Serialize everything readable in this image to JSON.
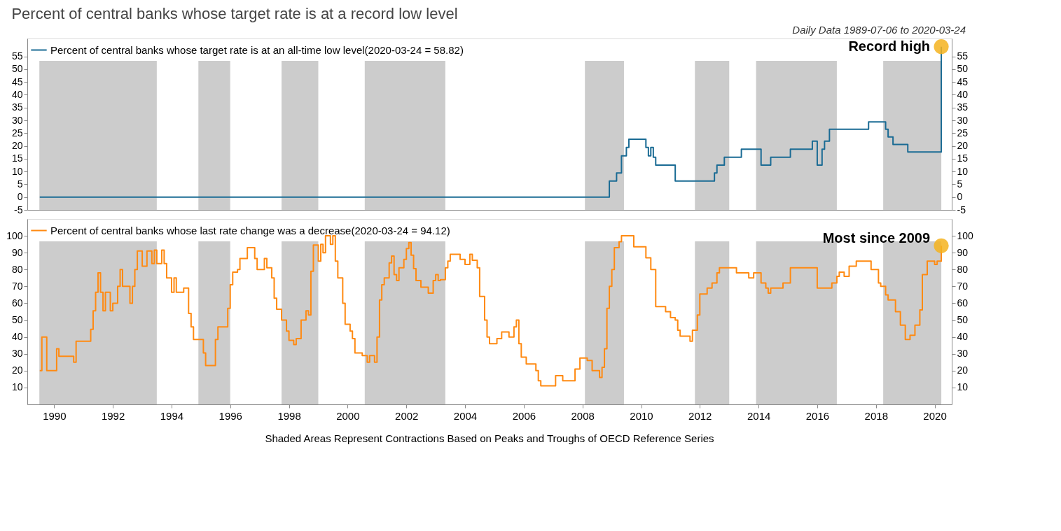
{
  "chart_data": [
    {
      "type": "step",
      "title": "Percent of central banks whose target rate is at a record low level",
      "subtitle": "Daily Data 1989-07-06 to 2020-03-24",
      "series": [
        {
          "name": "Percent of central banks whose target rate is at an all-time low level(2020-03-24 = 58.82)",
          "color": "#1a6b94",
          "x": [
            "1989-07-06",
            "2008-12",
            "2009-03",
            "2009-05",
            "2009-07",
            "2009-08",
            "2010-03",
            "2010-04",
            "2010-05",
            "2010-06",
            "2010-07",
            "2011-03",
            "2012-07",
            "2012-08",
            "2012-11",
            "2013-06",
            "2014-02",
            "2014-06",
            "2015-02",
            "2015-11",
            "2016-01",
            "2016-03",
            "2016-04",
            "2016-06",
            "2017-10",
            "2018-05",
            "2018-06",
            "2018-08",
            "2019-02",
            "2020-03-24"
          ],
          "values": [
            0,
            6.3,
            9.4,
            16.1,
            19.4,
            22.6,
            19.4,
            16.1,
            19.4,
            15.6,
            12.5,
            6.3,
            9.4,
            12.5,
            15.6,
            18.7,
            12.5,
            15.6,
            18.7,
            21.9,
            12.5,
            18.7,
            21.9,
            26.5,
            29.4,
            26.5,
            23.5,
            20.6,
            17.6,
            58.82
          ]
        }
      ],
      "xlim": [
        "1989-02",
        "2020-08"
      ],
      "ylim": [
        -5,
        62
      ],
      "yticks": [
        -5,
        0,
        5,
        10,
        15,
        20,
        25,
        30,
        35,
        40,
        45,
        50,
        55
      ],
      "y2lim": [
        -5,
        62
      ],
      "y2ticks": [
        -5,
        0,
        5,
        10,
        15,
        20,
        25,
        30,
        35,
        40,
        45,
        50,
        55
      ],
      "bands": [
        {
          "axis": "x",
          "from": "1989-07",
          "to": "1993-07",
          "color": "#cccccc"
        },
        {
          "axis": "x",
          "from": "1994-12",
          "to": "1996-01",
          "color": "#cccccc"
        },
        {
          "axis": "x",
          "from": "1997-10",
          "to": "1999-01",
          "color": "#cccccc"
        },
        {
          "axis": "x",
          "from": "2000-08",
          "to": "2003-05",
          "color": "#cccccc"
        },
        {
          "axis": "x",
          "from": "2008-02",
          "to": "2009-06",
          "color": "#cccccc"
        },
        {
          "axis": "x",
          "from": "2011-11",
          "to": "2013-01",
          "color": "#cccccc"
        },
        {
          "axis": "x",
          "from": "2013-12",
          "to": "2016-09",
          "color": "#cccccc"
        },
        {
          "axis": "x",
          "from": "2018-04",
          "to": "2020-03-24",
          "color": "#cccccc"
        }
      ],
      "annotations": [
        {
          "text": "Record high",
          "x": "2020-03-24",
          "y": 58.82
        }
      ],
      "legend": "top left",
      "tick_labels": "y",
      "grid": false,
      "line_style": "solid"
    },
    {
      "type": "step",
      "series": [
        {
          "name": "Percent of central banks whose last rate change was a decrease(2020-03-24 = 94.12)",
          "color": "#ff8a12",
          "x": [
            "1989-07-06",
            "1989-08",
            "1989-10",
            "1990-02",
            "1990-03",
            "1990-09",
            "1990-10",
            "1991-04",
            "1991-05",
            "1991-06",
            "1991-07",
            "1991-08",
            "1991-09",
            "1991-10",
            "1991-12",
            "1992-01",
            "1992-03",
            "1992-04",
            "1992-05",
            "1992-08",
            "1992-09",
            "1992-10",
            "1992-11",
            "1993-01",
            "1993-03",
            "1993-05",
            "1993-06",
            "1993-07",
            "1993-09",
            "1993-10",
            "1993-11",
            "1994-01",
            "1994-02",
            "1994-03",
            "1994-06",
            "1994-08",
            "1994-09",
            "1994-10",
            "1995-02",
            "1995-03",
            "1995-07",
            "1995-08",
            "1995-12",
            "1996-01",
            "1996-02",
            "1996-04",
            "1996-05",
            "1996-08",
            "1996-11",
            "1996-12",
            "1997-03",
            "1997-04",
            "1997-06",
            "1997-07",
            "1997-08",
            "1997-10",
            "1997-12",
            "1998-01",
            "1998-03",
            "1998-04",
            "1998-06",
            "1998-08",
            "1998-09",
            "1998-10",
            "1998-11",
            "1999-01",
            "1999-02",
            "1999-03",
            "1999-04",
            "1999-06",
            "1999-07",
            "1999-08",
            "1999-09",
            "1999-11",
            "1999-12",
            "2000-02",
            "2000-03",
            "2000-04",
            "2000-07",
            "2000-09",
            "2000-10",
            "2000-12",
            "2001-01",
            "2001-02",
            "2001-03",
            "2001-04",
            "2001-06",
            "2001-07",
            "2001-08",
            "2001-09",
            "2001-10",
            "2001-12",
            "2002-01",
            "2002-02",
            "2002-03",
            "2002-04",
            "2002-05",
            "2002-07",
            "2002-10",
            "2002-12",
            "2003-01",
            "2003-02",
            "2003-03",
            "2003-05",
            "2003-06",
            "2003-07",
            "2003-11",
            "2004-01",
            "2004-03",
            "2004-04",
            "2004-06",
            "2004-07",
            "2004-09",
            "2004-10",
            "2004-11",
            "2005-02",
            "2005-04",
            "2005-07",
            "2005-09",
            "2005-10",
            "2005-11",
            "2005-12",
            "2006-02",
            "2006-06",
            "2006-07",
            "2006-08",
            "2007-02",
            "2007-05",
            "2007-10",
            "2007-12",
            "2008-03",
            "2008-05",
            "2008-08",
            "2008-09",
            "2008-10",
            "2008-11",
            "2008-12",
            "2009-01",
            "2009-02",
            "2009-04",
            "2009-05",
            "2009-10",
            "2010-03",
            "2010-05",
            "2010-07",
            "2010-11",
            "2011-01",
            "2011-03",
            "2011-04",
            "2011-05",
            "2011-09",
            "2011-10",
            "2011-12",
            "2012-01",
            "2012-04",
            "2012-06",
            "2012-08",
            "2012-09",
            "2013-04",
            "2013-09",
            "2013-11",
            "2014-02",
            "2014-04",
            "2014-05",
            "2014-06",
            "2014-11",
            "2015-02",
            "2016-01",
            "2016-07",
            "2016-09",
            "2016-10",
            "2016-12",
            "2017-02",
            "2017-05",
            "2017-11",
            "2018-02",
            "2018-03",
            "2018-05",
            "2018-06",
            "2018-09",
            "2018-11",
            "2019-01",
            "2019-03",
            "2019-05",
            "2019-07",
            "2019-08",
            "2019-10",
            "2020-01",
            "2020-02",
            "2020-03-24"
          ],
          "values": [
            20,
            40,
            20,
            33,
            28.5,
            25,
            37.5,
            44.5,
            55.5,
            66.5,
            78,
            66.5,
            55.5,
            66.5,
            55.5,
            60,
            70,
            80,
            70,
            60,
            70,
            80,
            91,
            82,
            91,
            83.5,
            91.5,
            83.5,
            91.5,
            83.5,
            75,
            66.5,
            75,
            66.5,
            69,
            54,
            46,
            38.5,
            30.5,
            23,
            38.5,
            46,
            57,
            71,
            78.5,
            80,
            86.5,
            93,
            86.5,
            80,
            86.5,
            81,
            75,
            63,
            56.5,
            50,
            43.5,
            38,
            35.5,
            39,
            50,
            55.5,
            53,
            79,
            94.5,
            85,
            95,
            90,
            100,
            95,
            100,
            85,
            75,
            60,
            47.5,
            43.5,
            39,
            30.5,
            29,
            25,
            29,
            25,
            40,
            62,
            71,
            75,
            84,
            88,
            77,
            73.5,
            81,
            86,
            92.5,
            96,
            88.5,
            80.5,
            73.5,
            69.5,
            66,
            73.5,
            77,
            73.5,
            74,
            81,
            85,
            89,
            86,
            83,
            89,
            85.5,
            81,
            64,
            50,
            40,
            36,
            39,
            43,
            40,
            46,
            50,
            36,
            28,
            24,
            20,
            14,
            11,
            17,
            14,
            21,
            27.5,
            26,
            20,
            16,
            22,
            33,
            57,
            70,
            80,
            93,
            96.5,
            100,
            93.5,
            87,
            80,
            58,
            55,
            51.5,
            50,
            44,
            40.5,
            37.5,
            44,
            53,
            65.5,
            69,
            72,
            78,
            81,
            78,
            75,
            78,
            72,
            69,
            66,
            69,
            72,
            81,
            69,
            72,
            76,
            78.5,
            76,
            82,
            85,
            80,
            72,
            70,
            65,
            62,
            55,
            47,
            38.5,
            41,
            47,
            56,
            77,
            85,
            83,
            85,
            94.12
          ]
        }
      ],
      "xlim": [
        "1989-02",
        "2020-08"
      ],
      "xticks": [
        "1990",
        "1992",
        "1994",
        "1996",
        "1998",
        "2000",
        "2002",
        "2004",
        "2006",
        "2008",
        "2010",
        "2012",
        "2014",
        "2016",
        "2018",
        "2020"
      ],
      "ylim": [
        0,
        110
      ],
      "yticks": [
        10,
        20,
        30,
        40,
        50,
        60,
        70,
        80,
        90,
        100
      ],
      "y2lim": [
        0,
        110
      ],
      "y2ticks": [
        10,
        20,
        30,
        40,
        50,
        60,
        70,
        80,
        90,
        100
      ],
      "bands": [
        {
          "axis": "x",
          "from": "1989-07",
          "to": "1993-07",
          "color": "#cccccc"
        },
        {
          "axis": "x",
          "from": "1994-12",
          "to": "1996-01",
          "color": "#cccccc"
        },
        {
          "axis": "x",
          "from": "1997-10",
          "to": "1999-01",
          "color": "#cccccc"
        },
        {
          "axis": "x",
          "from": "2000-08",
          "to": "2003-05",
          "color": "#cccccc"
        },
        {
          "axis": "x",
          "from": "2008-02",
          "to": "2009-06",
          "color": "#cccccc"
        },
        {
          "axis": "x",
          "from": "2011-11",
          "to": "2013-01",
          "color": "#cccccc"
        },
        {
          "axis": "x",
          "from": "2013-12",
          "to": "2016-09",
          "color": "#cccccc"
        },
        {
          "axis": "x",
          "from": "2018-04",
          "to": "2020-03-24",
          "color": "#cccccc"
        }
      ],
      "annotations": [
        {
          "text": "Most since 2009",
          "x": "2020-03-24",
          "y": 94.12
        },
        "Shaded Areas Represent Contractions Based on Peaks and Troughs of OECD Reference Series"
      ],
      "legend": "top left",
      "grid": false,
      "line_style": "solid"
    }
  ]
}
